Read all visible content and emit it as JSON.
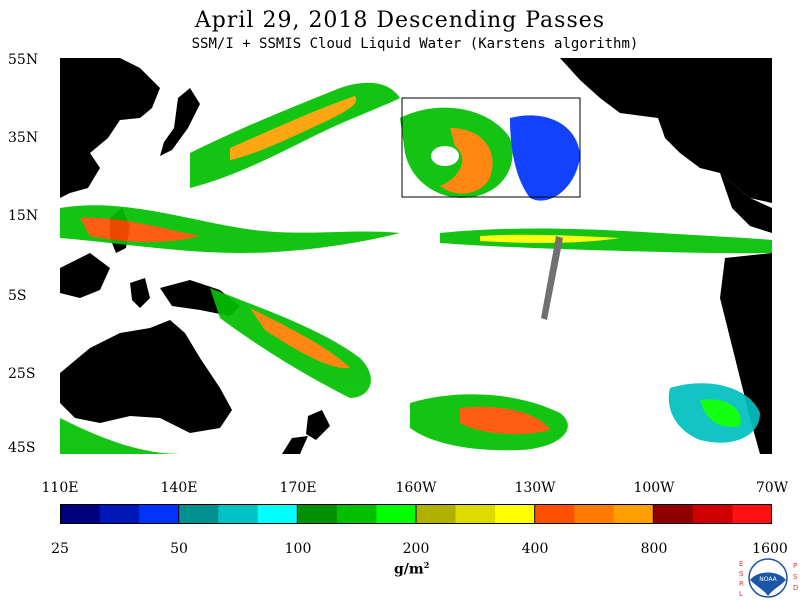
{
  "title": "April 29, 2018  Descending Passes",
  "subtitle": "SSM/I + SSMIS Cloud Liquid Water (Karstens algorithm)",
  "lat_labels": [
    "55N",
    "35N",
    "15N",
    "5S",
    "25S",
    "45S"
  ],
  "lon_labels": [
    "110E",
    "140E",
    "170E",
    "160W",
    "130W",
    "100W",
    "70W"
  ],
  "colorbar": {
    "colors": [
      "#00007f",
      "#0018b8",
      "#0033ff",
      "#00908f",
      "#00c4c4",
      "#00ffff",
      "#009000",
      "#00c000",
      "#00ff00",
      "#b0b000",
      "#dcdc00",
      "#ffff00",
      "#ff5000",
      "#ff7c00",
      "#ffa000",
      "#900000",
      "#d00000",
      "#ff1010"
    ],
    "tick_labels": [
      "25",
      "50",
      "100",
      "200",
      "400",
      "800",
      "1600"
    ]
  },
  "units": "g/m",
  "units_exp": "2",
  "logo": {
    "left_text": "ESRL",
    "right_text": "PSD",
    "center": "NOAA"
  }
}
